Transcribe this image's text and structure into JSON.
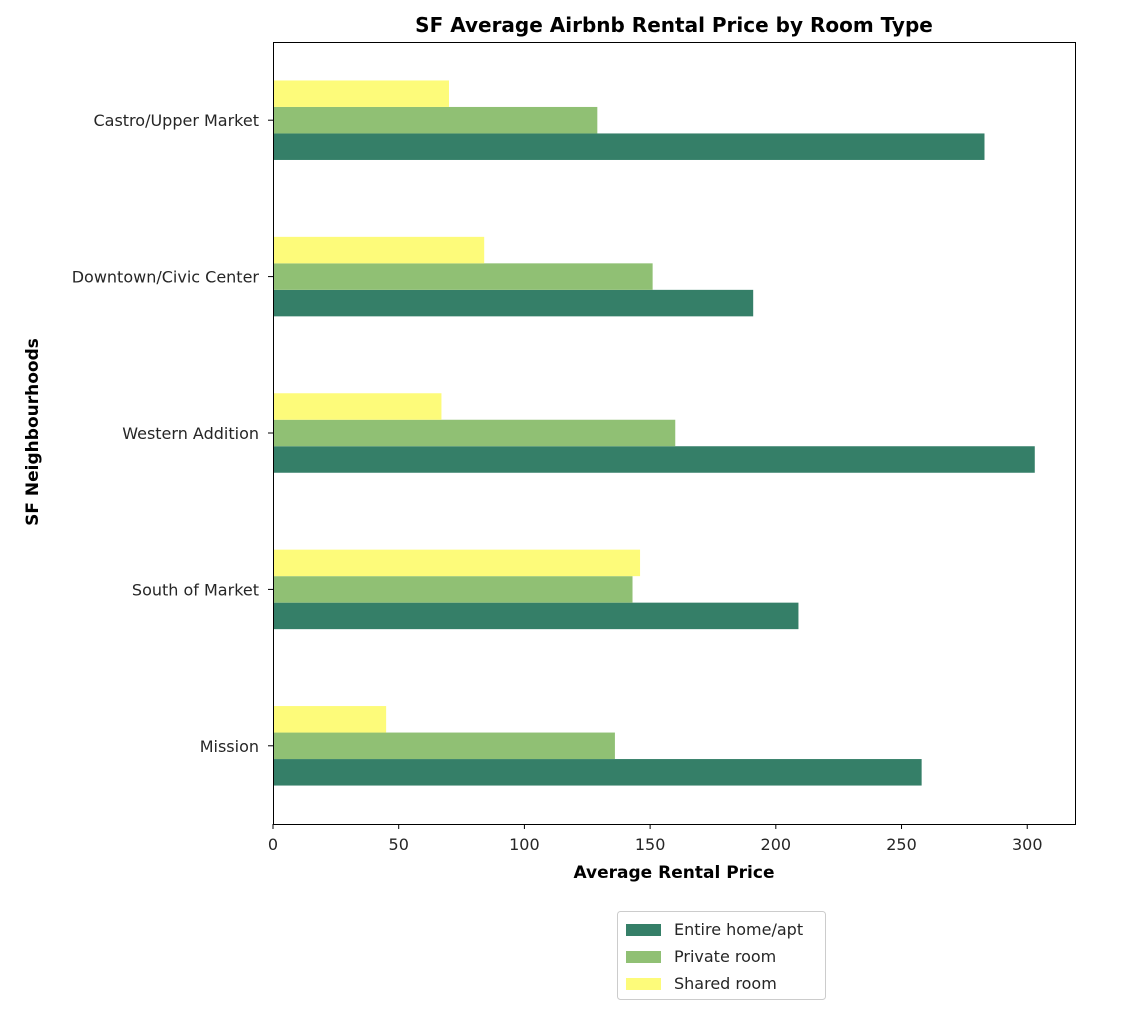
{
  "chart_data": {
    "type": "bar",
    "orientation": "horizontal",
    "title": "SF Average Airbnb Rental Price by Room Type",
    "xlabel": "Average Rental Price",
    "ylabel": "SF Neighbourhoods",
    "xlim": [
      0,
      319
    ],
    "xticks": [
      0,
      50,
      100,
      150,
      200,
      250,
      300
    ],
    "categories": [
      "Castro/Upper Market",
      "Downtown/Civic Center",
      "Western Addition",
      "South of Market",
      "Mission"
    ],
    "series": [
      {
        "name": "Entire home/apt",
        "color": "#357f68",
        "values": [
          283,
          191,
          303,
          209,
          258
        ]
      },
      {
        "name": "Private room",
        "color": "#90c074",
        "values": [
          129,
          151,
          160,
          143,
          136
        ]
      },
      {
        "name": "Shared room",
        "color": "#fdfb7a",
        "values": [
          70,
          84,
          67,
          146,
          45
        ]
      }
    ],
    "grid": false,
    "legend": "bottom-center, below axes"
  }
}
